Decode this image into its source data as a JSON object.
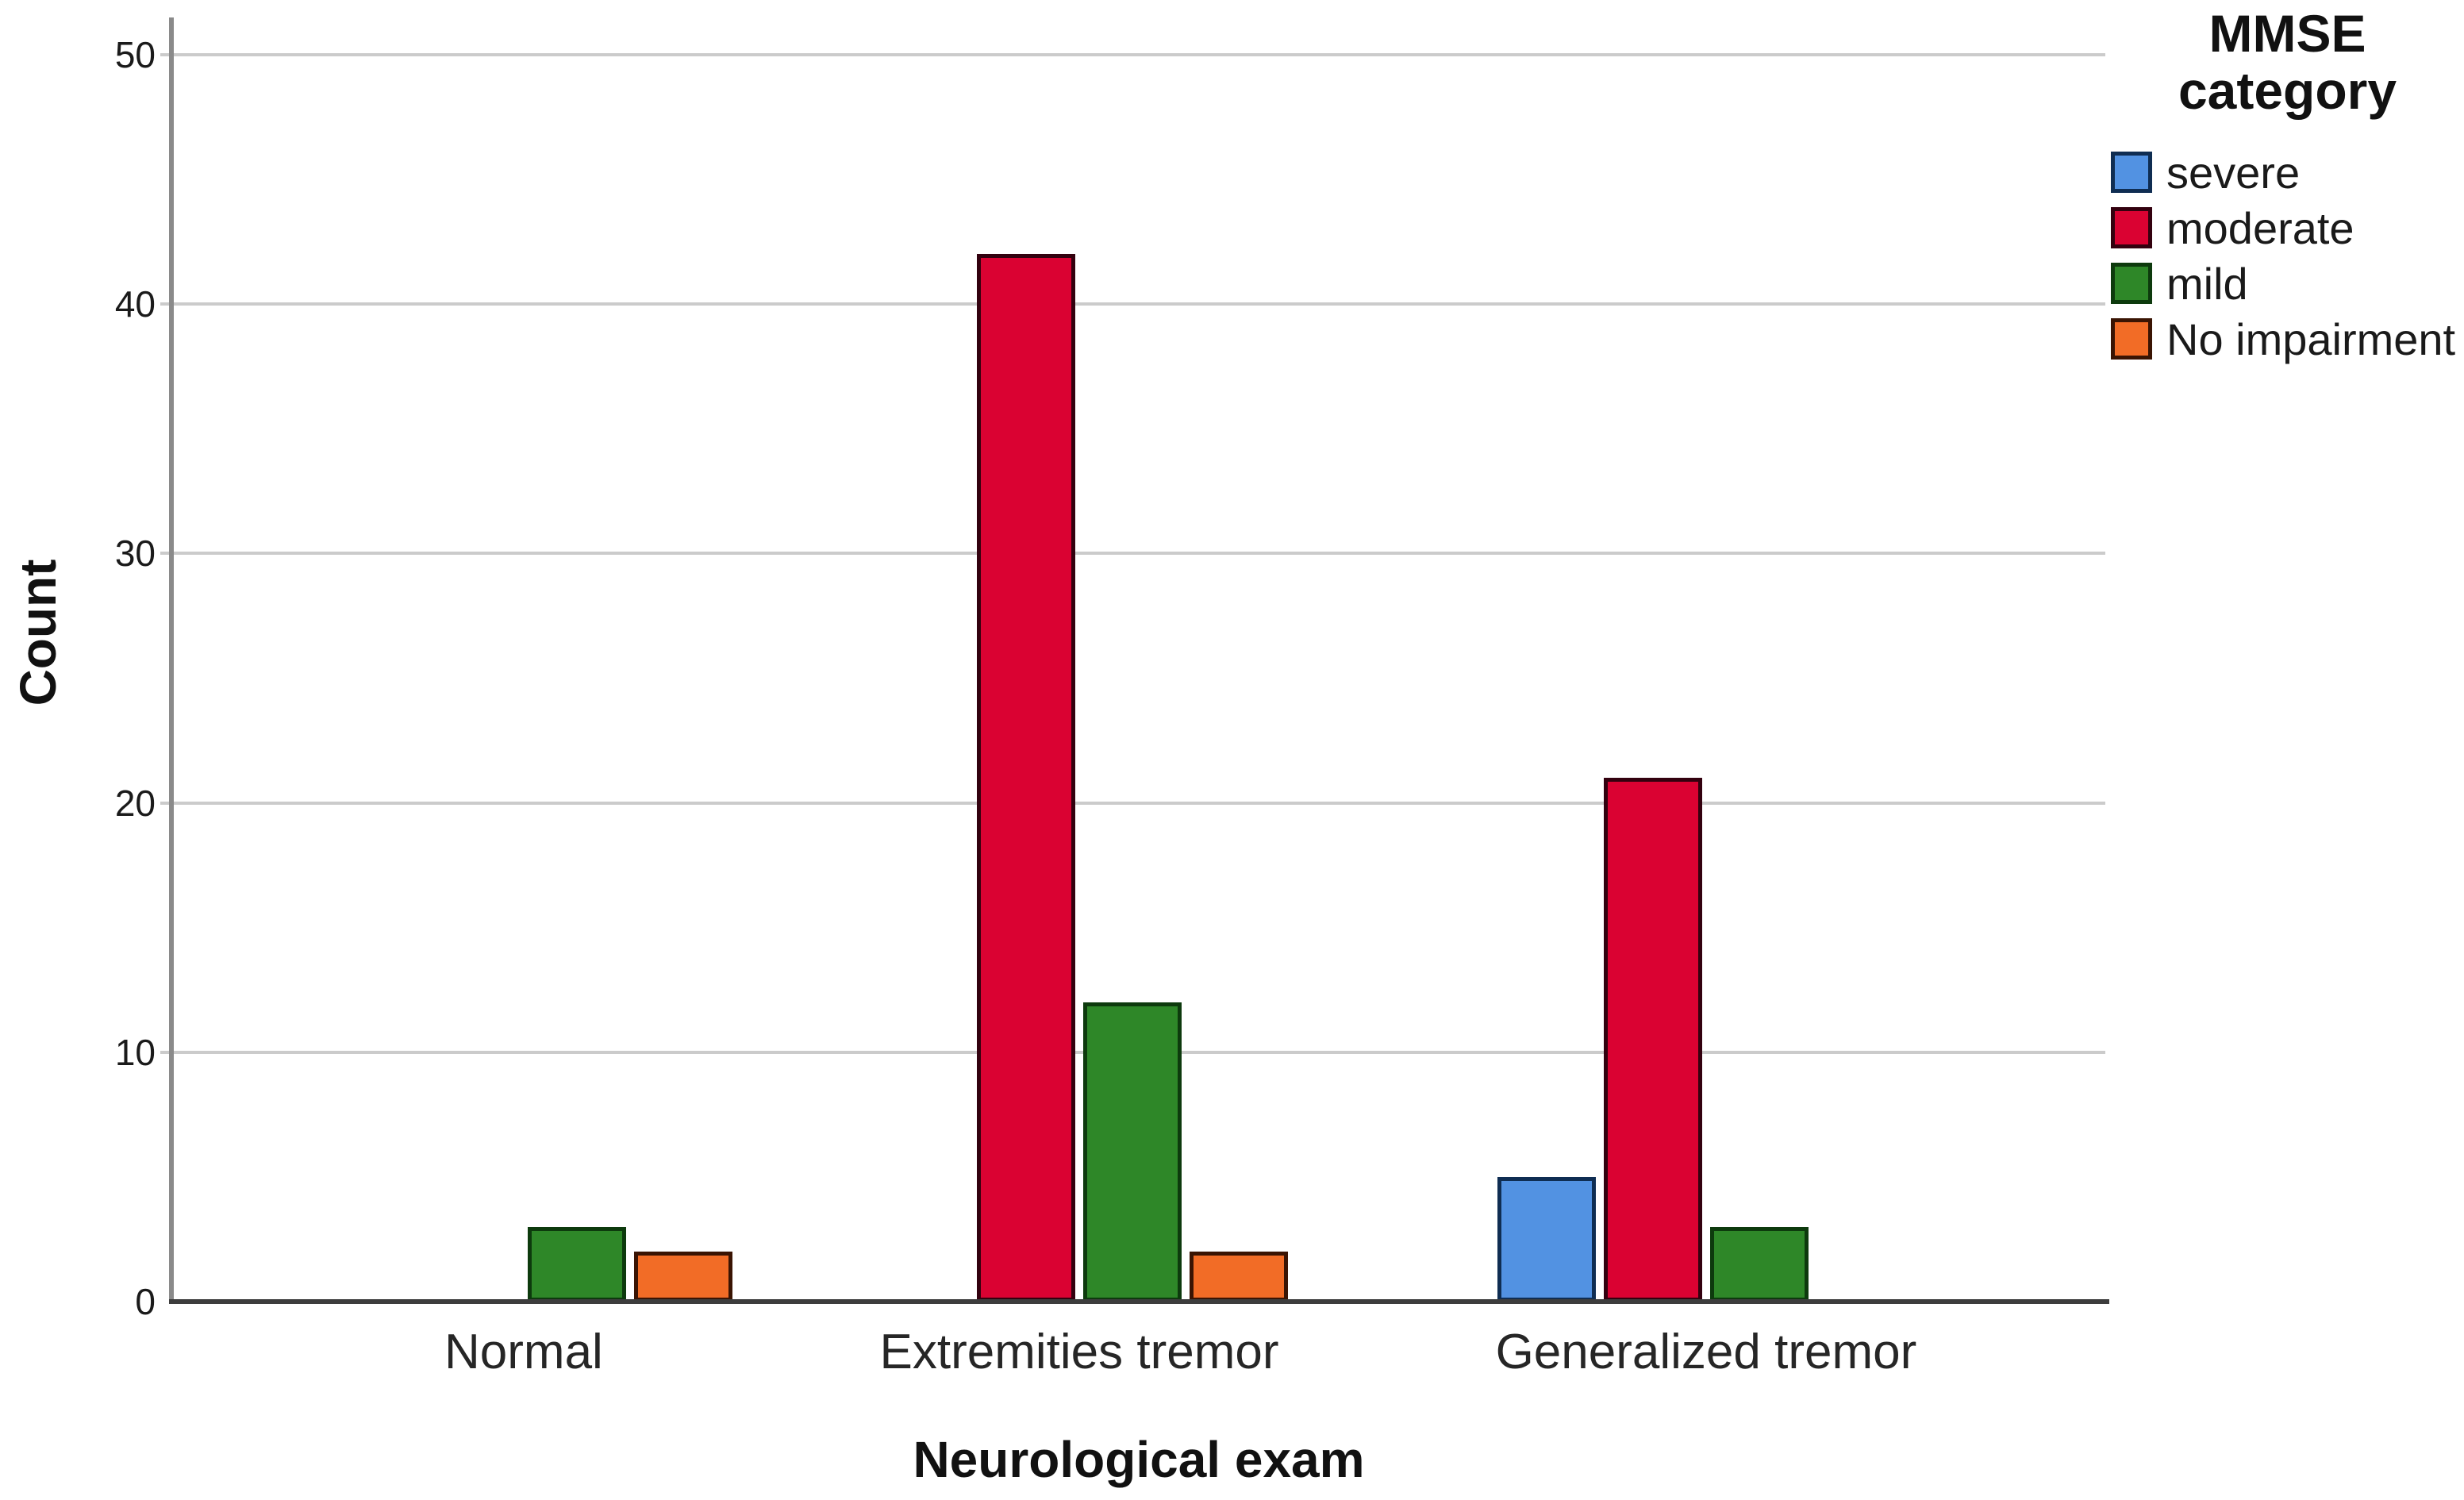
{
  "chart_data": {
    "type": "bar",
    "title": "",
    "xlabel": "Neurological exam",
    "ylabel": "Count",
    "categories": [
      "Normal",
      "Extremities tremor",
      "Generalized tremor"
    ],
    "series": [
      {
        "name": "severe",
        "color": "#5292E2",
        "border_color": "#0F2D52",
        "values": [
          0,
          0,
          5
        ]
      },
      {
        "name": "moderate",
        "color": "#DA0232",
        "border_color": "#33010F",
        "values": [
          0,
          42,
          21
        ]
      },
      {
        "name": "mild",
        "color": "#2E8728",
        "border_color": "#0D3A0D",
        "values": [
          3,
          12,
          3
        ]
      },
      {
        "name": "No impairment",
        "color": "#F26C26",
        "border_color": "#3A1403",
        "values": [
          2,
          2,
          0
        ]
      }
    ],
    "yticks": [
      0,
      10,
      20,
      30,
      40,
      50
    ],
    "ylim": [
      0,
      51.5
    ],
    "grid": true,
    "legend_position": "right",
    "legend_title": "MMSE category"
  },
  "legend": {
    "title_line1": "MMSE",
    "title_line2": "category"
  },
  "style": {
    "gridline_color": "#cbcbcb",
    "y_axis_color": "#8a8a8a",
    "x_axis_color": "#3d3d3d",
    "background": "#ffffff"
  }
}
